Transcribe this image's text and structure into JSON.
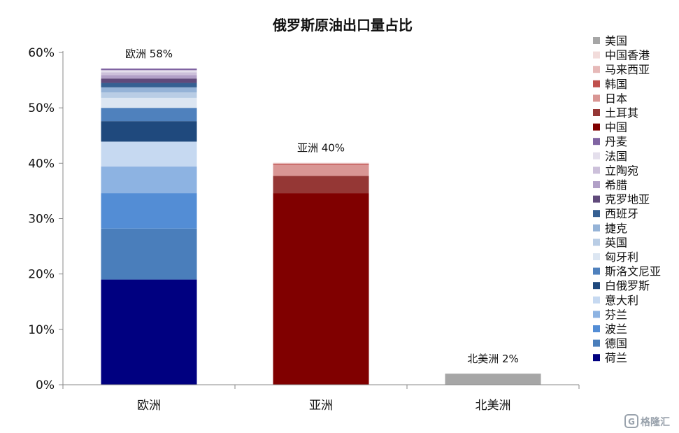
{
  "chart_data": {
    "type": "bar",
    "stacked": true,
    "title": "俄罗斯原油出口量占比",
    "categories": [
      "欧洲",
      "亚洲",
      "北美洲"
    ],
    "ylim": [
      0,
      60
    ],
    "yticks": [
      "0%",
      "10%",
      "20%",
      "30%",
      "40%",
      "50%",
      "60%"
    ],
    "totals": [
      "欧洲 58%",
      "亚洲 40%",
      "北美洲 2%"
    ],
    "legend_position": "right",
    "series": [
      {
        "name": "荷兰",
        "color": "#000080",
        "values": [
          19.0,
          0,
          0
        ]
      },
      {
        "name": "德国",
        "color": "#4a7ebb",
        "values": [
          9.2,
          0,
          0
        ]
      },
      {
        "name": "波兰",
        "color": "#538dd5",
        "values": [
          6.4,
          0,
          0
        ]
      },
      {
        "name": "芬兰",
        "color": "#8db3e2",
        "values": [
          4.8,
          0,
          0
        ]
      },
      {
        "name": "意大利",
        "color": "#c6d9f1",
        "values": [
          4.5,
          0,
          0
        ]
      },
      {
        "name": "白俄罗斯",
        "color": "#1f497d",
        "values": [
          3.7,
          0,
          0
        ]
      },
      {
        "name": "斯洛文尼亚",
        "color": "#4f81bd",
        "values": [
          2.4,
          0,
          0
        ]
      },
      {
        "name": "匈牙利",
        "color": "#dce6f2",
        "values": [
          1.8,
          0,
          0
        ]
      },
      {
        "name": "英国",
        "color": "#b9cde5",
        "values": [
          1.0,
          0,
          0
        ]
      },
      {
        "name": "捷克",
        "color": "#95b3d7",
        "values": [
          0.9,
          0,
          0
        ]
      },
      {
        "name": "西班牙",
        "color": "#366092",
        "values": [
          0.8,
          0,
          0
        ]
      },
      {
        "name": "克罗地亚",
        "color": "#604a7b",
        "values": [
          0.8,
          0,
          0
        ]
      },
      {
        "name": "希腊",
        "color": "#b1a0c7",
        "values": [
          0.6,
          0,
          0
        ]
      },
      {
        "name": "立陶宛",
        "color": "#ccc0da",
        "values": [
          0.5,
          0,
          0
        ]
      },
      {
        "name": "法国",
        "color": "#e4dfec",
        "values": [
          0.4,
          0,
          0
        ]
      },
      {
        "name": "丹麦",
        "color": "#8064a2",
        "values": [
          0.3,
          0,
          0
        ]
      },
      {
        "name": "中国",
        "color": "#800000",
        "values": [
          0,
          34.6,
          0
        ]
      },
      {
        "name": "土耳其",
        "color": "#953735",
        "values": [
          0,
          3.1,
          0
        ]
      },
      {
        "name": "日本",
        "color": "#d99694",
        "values": [
          0,
          2.0,
          0
        ]
      },
      {
        "name": "韩国",
        "color": "#c0504d",
        "values": [
          0,
          0.2,
          0
        ]
      },
      {
        "name": "马来西亚",
        "color": "#e6b9b8",
        "values": [
          0,
          0.1,
          0
        ]
      },
      {
        "name": "中国香港",
        "color": "#f2dcdb",
        "values": [
          0,
          0.1,
          0
        ]
      },
      {
        "name": "美国",
        "color": "#a6a6a6",
        "values": [
          0,
          0,
          2.0
        ]
      }
    ]
  },
  "watermark": {
    "text": "格隆汇",
    "icon": "glh-logo-icon"
  }
}
